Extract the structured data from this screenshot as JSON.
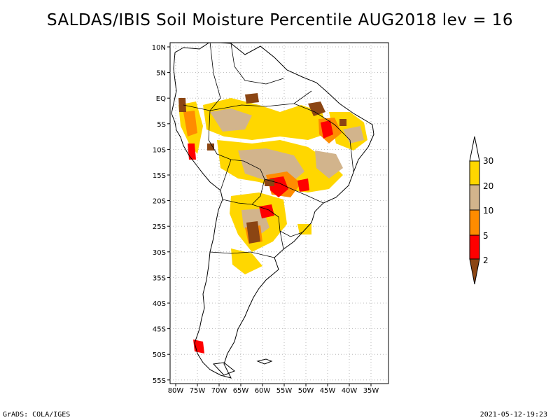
{
  "title": "SALDAS/IBIS Soil Moisture Percentile AUG2018 lev = 16",
  "map": {
    "lat_ticks": [
      "10N",
      "5N",
      "EQ",
      "5S",
      "10S",
      "15S",
      "20S",
      "25S",
      "30S",
      "35S",
      "40S",
      "45S",
      "50S",
      "55S"
    ],
    "lon_ticks": [
      "80W",
      "75W",
      "70W",
      "65W",
      "60W",
      "55W",
      "50W",
      "45W",
      "40W",
      "35W"
    ],
    "region": "South America",
    "grid": "dotted"
  },
  "legend": {
    "labels": [
      "2",
      "5",
      "10",
      "20",
      "30"
    ],
    "colors": {
      "below_2": "#8B4513",
      "2_5": "#FF0000",
      "5_10": "#FF8C00",
      "10_20": "#D2B48C",
      "20_30": "#FFD700",
      "above_30": "#FFFFFF"
    }
  },
  "footer": {
    "left": "GrADS: COLA/IGES",
    "right": "2021-05-12-19:23"
  }
}
